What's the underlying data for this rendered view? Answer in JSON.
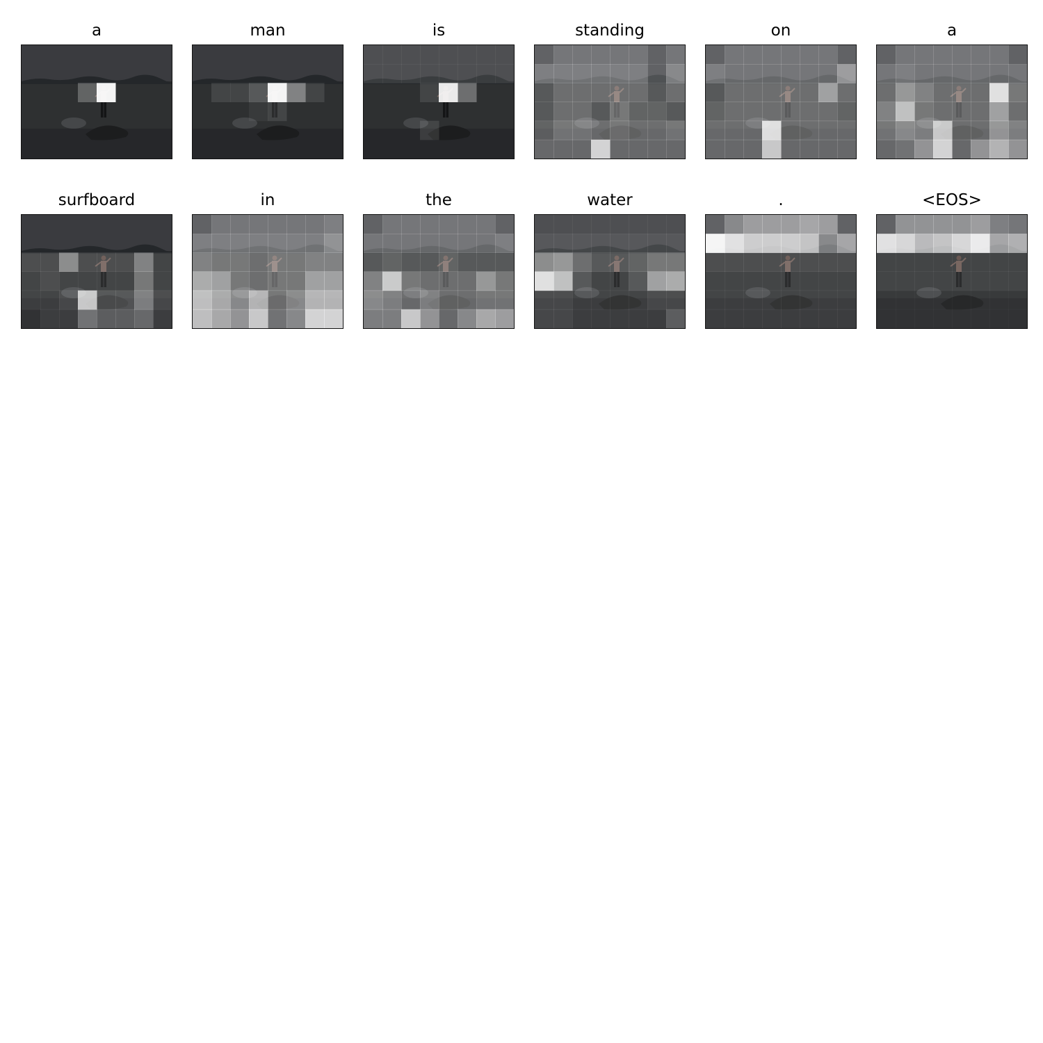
{
  "figure": {
    "tokens": [
      {
        "word": "a"
      },
      {
        "word": "man"
      },
      {
        "word": "is"
      },
      {
        "word": "standing"
      },
      {
        "word": "on"
      },
      {
        "word": "a"
      },
      {
        "word": "surfboard"
      },
      {
        "word": "in"
      },
      {
        "word": "the"
      },
      {
        "word": "water"
      },
      {
        "word": "."
      },
      {
        "word": "<EOS>"
      }
    ]
  }
}
